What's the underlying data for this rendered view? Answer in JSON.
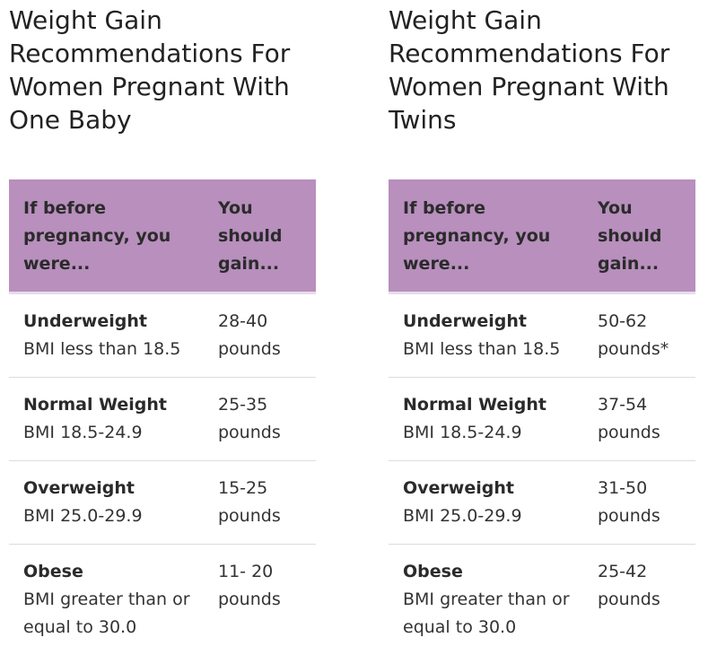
{
  "tables": [
    {
      "title": "Weight Gain Recommendations For Women Pregnant With One Baby",
      "header": {
        "col1": "If before pregnancy, you were...",
        "col2": "You should gain..."
      },
      "rows": [
        {
          "category": "Underweight",
          "bmi": "BMI less than 18.5",
          "gain": "28-40 pounds"
        },
        {
          "category": "Normal Weight",
          "bmi": "BMI 18.5-24.9",
          "gain": "25-35 pounds"
        },
        {
          "category": "Overweight",
          "bmi": "BMI 25.0-29.9",
          "gain": "15-25 pounds"
        },
        {
          "category": "Obese",
          "bmi": "BMI greater than or equal to 30.0",
          "gain": "11- 20 pounds"
        }
      ]
    },
    {
      "title": "Weight Gain Recommendations For Women Pregnant With Twins",
      "header": {
        "col1": "If before pregnancy, you were...",
        "col2": "You should gain..."
      },
      "rows": [
        {
          "category": "Underweight",
          "bmi": "BMI less than 18.5",
          "gain": "50-62 pounds*"
        },
        {
          "category": "Normal Weight",
          "bmi": "BMI 18.5-24.9",
          "gain": "37-54 pounds"
        },
        {
          "category": "Overweight",
          "bmi": "BMI 25.0-29.9",
          "gain": "31-50 pounds"
        },
        {
          "category": "Obese",
          "bmi": "BMI greater than or equal to 30.0",
          "gain": "25-42 pounds"
        }
      ]
    }
  ],
  "colors": {
    "header_bg": "#b88fbd",
    "header_underline": "#e7dcea",
    "row_divider": "#dcdcdc"
  }
}
